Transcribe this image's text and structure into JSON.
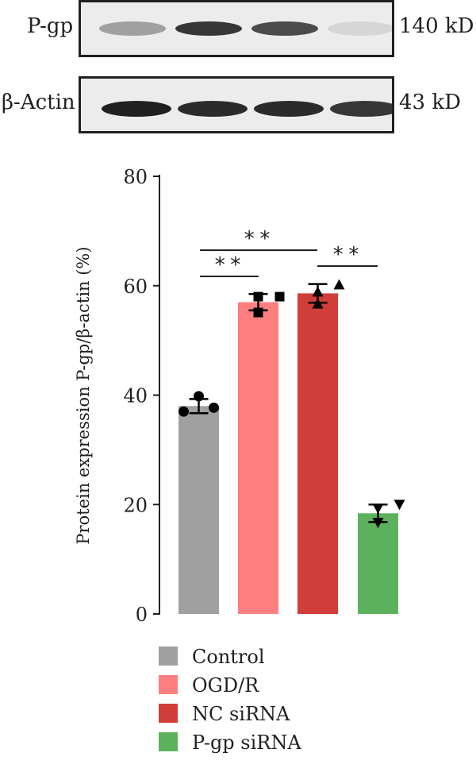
{
  "blot": {
    "rows": [
      {
        "protein": "P-gp",
        "size": "140 kD",
        "intensities": [
          0.35,
          0.85,
          0.75,
          0.1
        ]
      },
      {
        "protein": "β-Actin",
        "size": "43 kD",
        "intensities": [
          0.95,
          0.9,
          0.9,
          0.85
        ]
      }
    ]
  },
  "chart_data": {
    "type": "bar",
    "categories": [
      "Control",
      "OGD/R",
      "NC siRNA",
      "P-gp siRNA"
    ],
    "values": [
      38.0,
      57.0,
      58.6,
      18.4
    ],
    "errors": [
      1.3,
      1.5,
      1.7,
      1.6
    ],
    "points": [
      [
        37.0,
        39.8,
        37.7
      ],
      [
        55.1,
        58.0,
        58.0
      ],
      [
        56.7,
        58.9,
        60.2
      ],
      [
        16.7,
        19.3,
        20.0
      ]
    ],
    "markers": [
      "circle",
      "square",
      "triangle-up",
      "triangle-down"
    ],
    "colors": [
      "#a0a0a0",
      "#fe7f7f",
      "#d13d38",
      "#5cb25c"
    ],
    "ylabel": "Protein expression P-gp/β-actin (%)",
    "ylim": [
      0,
      80
    ],
    "yticks": [
      0,
      20,
      40,
      60,
      80
    ],
    "significance": [
      {
        "from": "Control",
        "to": "OGD/R",
        "label": "**"
      },
      {
        "from": "Control",
        "to": "NC siRNA",
        "label": "**"
      },
      {
        "from": "NC siRNA",
        "to": "P-gp siRNA",
        "label": "**"
      }
    ],
    "legend": [
      "Control",
      "OGD/R",
      "NC siRNA",
      "P-gp siRNA"
    ],
    "legend_position": "bottom",
    "grid": false
  }
}
